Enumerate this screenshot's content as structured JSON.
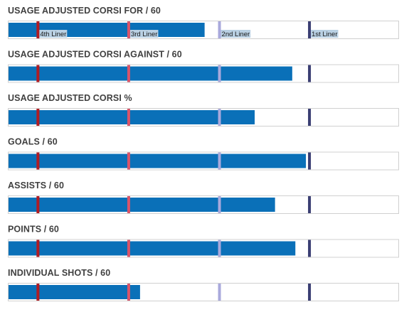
{
  "chart_data": {
    "type": "bar",
    "orientation": "horizontal",
    "xlim": [
      0,
      1
    ],
    "markers": [
      {
        "label": "4th Liner",
        "value": 0.077,
        "color": "#b01c24"
      },
      {
        "label": "3rd Liner",
        "value": 0.309,
        "color": "#d9546a"
      },
      {
        "label": "2nd Liner",
        "value": 0.541,
        "color": "#a9a9dc"
      },
      {
        "label": "1st Liner",
        "value": 0.771,
        "color": "#3b3f73"
      }
    ],
    "metrics": [
      {
        "title": "USAGE ADJUSTED CORSI FOR / 60",
        "value": 0.503
      },
      {
        "title": "USAGE ADJUSTED CORSI AGAINST / 60",
        "value": 0.727
      },
      {
        "title": "USAGE ADJUSTED CORSI %",
        "value": 0.631
      },
      {
        "title": "GOALS / 60",
        "value": 0.762
      },
      {
        "title": "ASSISTS / 60",
        "value": 0.683
      },
      {
        "title": "POINTS / 60",
        "value": 0.735
      },
      {
        "title": "INDIVIDUAL SHOTS / 60",
        "value": 0.338
      }
    ],
    "marker_labels_on_row": 0
  }
}
